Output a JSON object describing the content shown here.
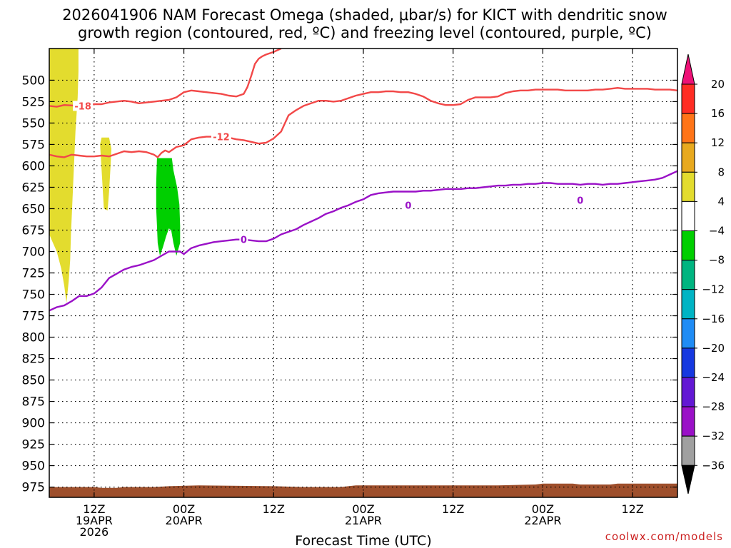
{
  "title_line1": "2026041906 NAM Forecast Omega (shaded, μbar/s) for KICT with dendritic snow",
  "title_line2": "growth region (contoured, red, ºC) and freezing level (contoured, purple, ºC)",
  "credit": "coolwx.com/models",
  "chart_data": {
    "type": "contour",
    "xlabel": "Forecast Time (UTC)",
    "y_axis": {
      "reversed": true,
      "range": [
        987,
        463
      ],
      "unit": "hPa"
    },
    "y_ticks": [
      500,
      525,
      550,
      575,
      600,
      625,
      650,
      675,
      700,
      725,
      750,
      775,
      800,
      825,
      850,
      875,
      900,
      925,
      950,
      975
    ],
    "x_axis": {
      "range": [
        0,
        84
      ],
      "unit": "forecast hour"
    },
    "x_ticks": [
      {
        "hour": 6,
        "lines": [
          "12Z",
          "19APR",
          "2026"
        ]
      },
      {
        "hour": 18,
        "lines": [
          "00Z",
          "20APR"
        ]
      },
      {
        "hour": 30,
        "lines": [
          "12Z"
        ]
      },
      {
        "hour": 42,
        "lines": [
          "00Z",
          "21APR"
        ]
      },
      {
        "hour": 54,
        "lines": [
          "12Z"
        ]
      },
      {
        "hour": 66,
        "lines": [
          "00Z",
          "22APR"
        ]
      },
      {
        "hour": 78,
        "lines": [
          "12Z"
        ]
      }
    ],
    "grid": true,
    "contours": [
      {
        "name": "-18",
        "color": "#f24848",
        "labels": [
          {
            "text": "-18",
            "at": [
              4.5,
              530
            ]
          }
        ],
        "points": [
          [
            0,
            530
          ],
          [
            1,
            531
          ],
          [
            2,
            529
          ],
          [
            4,
            530
          ],
          [
            6,
            528
          ],
          [
            7,
            528
          ],
          [
            8,
            526
          ],
          [
            10,
            524
          ],
          [
            11,
            525
          ],
          [
            12,
            527
          ],
          [
            13,
            526
          ],
          [
            14,
            525
          ],
          [
            15,
            524
          ],
          [
            16,
            523
          ],
          [
            17,
            520
          ],
          [
            18,
            514
          ],
          [
            19,
            512
          ],
          [
            20,
            513
          ],
          [
            21,
            514
          ],
          [
            22,
            515
          ],
          [
            23,
            516
          ],
          [
            24,
            518
          ],
          [
            25,
            519
          ],
          [
            26,
            516
          ],
          [
            26.5,
            508
          ],
          [
            27,
            495
          ],
          [
            27.5,
            481
          ],
          [
            28,
            475
          ],
          [
            28.5,
            472
          ],
          [
            29,
            470
          ],
          [
            30,
            467
          ],
          [
            31,
            463
          ]
        ]
      },
      {
        "name": "-12 (lower)",
        "color": "#f24848",
        "labels": [
          {
            "text": "-12",
            "at": [
              23,
              566
            ]
          }
        ],
        "points": [
          [
            0,
            587
          ],
          [
            1,
            589
          ],
          [
            2,
            590
          ],
          [
            3,
            587
          ],
          [
            4,
            588
          ],
          [
            5,
            589
          ],
          [
            6,
            589
          ],
          [
            7,
            588
          ],
          [
            8,
            589
          ],
          [
            9,
            586
          ],
          [
            10,
            583
          ],
          [
            11,
            584
          ],
          [
            12,
            583
          ],
          [
            13,
            584
          ],
          [
            14,
            587
          ],
          [
            14.5,
            590
          ],
          [
            15,
            585
          ],
          [
            15.5,
            582
          ],
          [
            16,
            584
          ],
          [
            17,
            578
          ],
          [
            18,
            576
          ],
          [
            19,
            569
          ],
          [
            20,
            567
          ],
          [
            21,
            566
          ],
          [
            22,
            566
          ],
          [
            23,
            566
          ],
          [
            24,
            567
          ],
          [
            25,
            569
          ],
          [
            26,
            570
          ],
          [
            27,
            572
          ],
          [
            28,
            574
          ],
          [
            29,
            573
          ],
          [
            30,
            568
          ],
          [
            31,
            560
          ],
          [
            32,
            541
          ],
          [
            33,
            535
          ],
          [
            34,
            530
          ],
          [
            35,
            527
          ],
          [
            36,
            524
          ],
          [
            37,
            524
          ],
          [
            38,
            525
          ],
          [
            39,
            524
          ],
          [
            40,
            521
          ],
          [
            41,
            518
          ],
          [
            42,
            516
          ],
          [
            43,
            514
          ],
          [
            44,
            514
          ],
          [
            45,
            513
          ],
          [
            46,
            513
          ],
          [
            47,
            514
          ],
          [
            48,
            514
          ],
          [
            49,
            516
          ],
          [
            50,
            519
          ],
          [
            51,
            524
          ],
          [
            52,
            527
          ],
          [
            53,
            529
          ],
          [
            54,
            529
          ],
          [
            55,
            528
          ],
          [
            56,
            523
          ],
          [
            57,
            520
          ],
          [
            58,
            520
          ],
          [
            59,
            520
          ],
          [
            60,
            519
          ],
          [
            61,
            515
          ],
          [
            62,
            513
          ],
          [
            63,
            512
          ],
          [
            64,
            512
          ],
          [
            65,
            511
          ],
          [
            66,
            511
          ],
          [
            67,
            511
          ],
          [
            68,
            511
          ],
          [
            69,
            512
          ],
          [
            70,
            512
          ],
          [
            71,
            512
          ],
          [
            72,
            512
          ],
          [
            73,
            511
          ],
          [
            74,
            511
          ],
          [
            75,
            510
          ],
          [
            76,
            509
          ],
          [
            77,
            510
          ],
          [
            78,
            510
          ],
          [
            79,
            510
          ],
          [
            80,
            510
          ],
          [
            81,
            511
          ],
          [
            82,
            511
          ],
          [
            83,
            511
          ],
          [
            84,
            512
          ]
        ]
      },
      {
        "name": "0 (freezing level)",
        "color": "#9a11c7",
        "labels": [
          {
            "text": "0",
            "at": [
              26,
              686
            ]
          },
          {
            "text": "0",
            "at": [
              48,
              646
            ]
          },
          {
            "text": "0",
            "at": [
              71,
              640
            ]
          }
        ],
        "points": [
          [
            0,
            769
          ],
          [
            1,
            765
          ],
          [
            2,
            763
          ],
          [
            3,
            758
          ],
          [
            4,
            752
          ],
          [
            5,
            752
          ],
          [
            6,
            749
          ],
          [
            7,
            742
          ],
          [
            8,
            731
          ],
          [
            9,
            726
          ],
          [
            10,
            721
          ],
          [
            11,
            718
          ],
          [
            12,
            716
          ],
          [
            13,
            713
          ],
          [
            14,
            710
          ],
          [
            15,
            705
          ],
          [
            16,
            700
          ],
          [
            17,
            700
          ],
          [
            17.5,
            700
          ],
          [
            18,
            703
          ],
          [
            19,
            696
          ],
          [
            20,
            693
          ],
          [
            21,
            691
          ],
          [
            22,
            689
          ],
          [
            23,
            688
          ],
          [
            24,
            687
          ],
          [
            25,
            686
          ],
          [
            26,
            686
          ],
          [
            27,
            687
          ],
          [
            28,
            688
          ],
          [
            29,
            688
          ],
          [
            30,
            685
          ],
          [
            31,
            680
          ],
          [
            32,
            677
          ],
          [
            33,
            674
          ],
          [
            34,
            669
          ],
          [
            35,
            665
          ],
          [
            36,
            661
          ],
          [
            37,
            656
          ],
          [
            38,
            653
          ],
          [
            39,
            649
          ],
          [
            40,
            646
          ],
          [
            41,
            642
          ],
          [
            42,
            639
          ],
          [
            43,
            634
          ],
          [
            44,
            632
          ],
          [
            45,
            631
          ],
          [
            46,
            630
          ],
          [
            47,
            630
          ],
          [
            48,
            630
          ],
          [
            49,
            630
          ],
          [
            50,
            629
          ],
          [
            51,
            629
          ],
          [
            52,
            628
          ],
          [
            53,
            627
          ],
          [
            54,
            627
          ],
          [
            55,
            627
          ],
          [
            56,
            626
          ],
          [
            57,
            626
          ],
          [
            58,
            625
          ],
          [
            59,
            624
          ],
          [
            60,
            623
          ],
          [
            61,
            623
          ],
          [
            62,
            622
          ],
          [
            63,
            622
          ],
          [
            64,
            621
          ],
          [
            65,
            621
          ],
          [
            66,
            620
          ],
          [
            67,
            620
          ],
          [
            68,
            621
          ],
          [
            69,
            621
          ],
          [
            70,
            621
          ],
          [
            71,
            622
          ],
          [
            72,
            621
          ],
          [
            73,
            621
          ],
          [
            74,
            622
          ],
          [
            75,
            621
          ],
          [
            76,
            621
          ],
          [
            77,
            620
          ],
          [
            78,
            619
          ],
          [
            79,
            618
          ],
          [
            80,
            617
          ],
          [
            81,
            616
          ],
          [
            82,
            614
          ],
          [
            83,
            610
          ],
          [
            84,
            606
          ]
        ]
      }
    ],
    "shaded_regions": [
      {
        "name": "4 to 8 (column near start)",
        "color": "#e3dc2e",
        "outline": [
          [
            0,
            463
          ],
          [
            3.9,
            463
          ],
          [
            3.9,
            490
          ],
          [
            3.8,
            520
          ],
          [
            3.5,
            560
          ],
          [
            3.3,
            600
          ],
          [
            3.1,
            640
          ],
          [
            2.9,
            680
          ],
          [
            2.8,
            710
          ],
          [
            2.6,
            735
          ],
          [
            2.3,
            760
          ],
          [
            2.0,
            740
          ],
          [
            1.6,
            720
          ],
          [
            1.0,
            700
          ],
          [
            0.5,
            690
          ],
          [
            0,
            680
          ]
        ]
      },
      {
        "name": "4 to 8 (small blob)",
        "color": "#e3dc2e",
        "outline": [
          [
            7.0,
            567
          ],
          [
            8.0,
            567
          ],
          [
            8.3,
            580
          ],
          [
            8.2,
            600
          ],
          [
            8.0,
            630
          ],
          [
            7.8,
            652
          ],
          [
            7.3,
            650
          ],
          [
            7.1,
            620
          ],
          [
            6.9,
            590
          ],
          [
            6.8,
            575
          ]
        ]
      },
      {
        "name": "-8 to -4 (green)",
        "color": "#00cf00",
        "outline": [
          [
            14.4,
            591
          ],
          [
            16.4,
            591
          ],
          [
            16.6,
            605
          ],
          [
            17.1,
            625
          ],
          [
            17.4,
            645
          ],
          [
            17.5,
            670
          ],
          [
            17.5,
            690
          ],
          [
            17.0,
            705
          ],
          [
            16.6,
            690
          ],
          [
            16.3,
            675
          ],
          [
            16.0,
            673
          ],
          [
            15.6,
            683
          ],
          [
            15.2,
            695
          ],
          [
            14.8,
            705
          ],
          [
            14.5,
            690
          ],
          [
            14.4,
            670
          ],
          [
            14.3,
            650
          ],
          [
            14.3,
            620
          ]
        ]
      }
    ],
    "terrain": {
      "color": "#9e4f2c",
      "top": [
        [
          0,
          975
        ],
        [
          6,
          975
        ],
        [
          7,
          976
        ],
        [
          8,
          976
        ],
        [
          9,
          976
        ],
        [
          10,
          975
        ],
        [
          14,
          975
        ],
        [
          16,
          974
        ],
        [
          20,
          973
        ],
        [
          30,
          974
        ],
        [
          34,
          975
        ],
        [
          39,
          975
        ],
        [
          40,
          974
        ],
        [
          41,
          973
        ],
        [
          50,
          973
        ],
        [
          55,
          973
        ],
        [
          60,
          973
        ],
        [
          65,
          972
        ],
        [
          66,
          971
        ],
        [
          70,
          971
        ],
        [
          71,
          972
        ],
        [
          75,
          972
        ],
        [
          76,
          971
        ],
        [
          84,
          971
        ]
      ]
    },
    "colorbar": {
      "labels": [
        "20",
        "16",
        "12",
        "8",
        "4",
        "−4",
        "−8",
        "−12",
        "−16",
        "−20",
        "−24",
        "−28",
        "−32",
        "−36"
      ],
      "colors": [
        "#ff2d24",
        "#ff7417",
        "#e8a91e",
        "#e3dc2e",
        "#ffffff",
        "#00cf00",
        "#00b580",
        "#00b4c4",
        "#1f8cf5",
        "#1638e0",
        "#6318d4",
        "#9a11c7",
        "#a0a0a0"
      ],
      "top_cap_color": "#ee1177",
      "bottom_cap_color": "#000000"
    }
  }
}
